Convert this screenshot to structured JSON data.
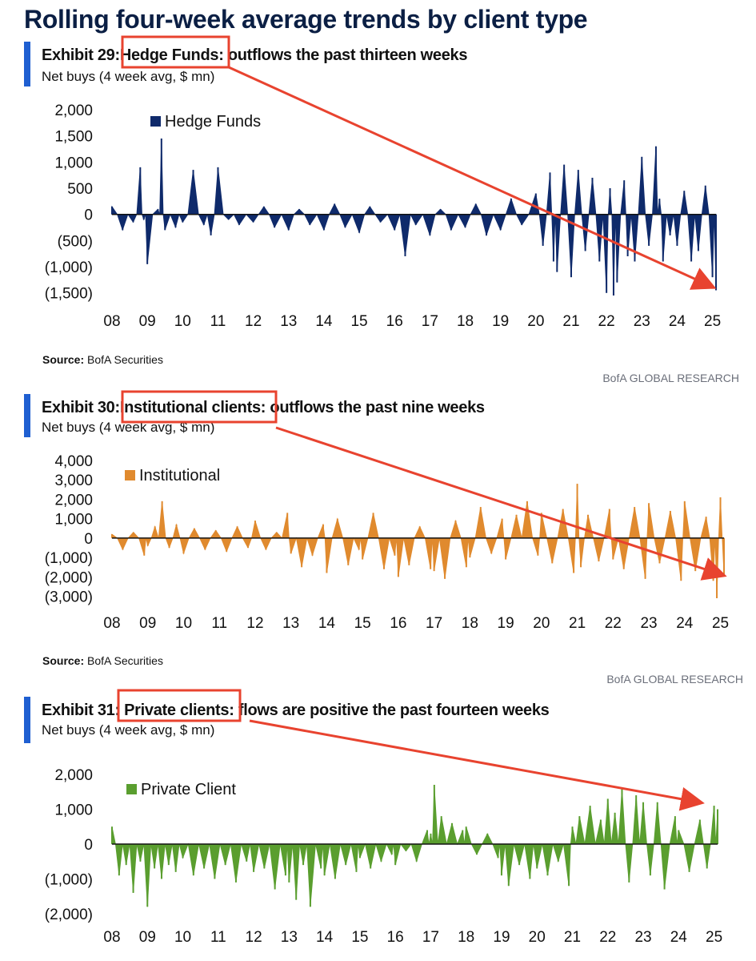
{
  "page": {
    "title": "Rolling four-week average trends by client type"
  },
  "exhibits": [
    {
      "label": "Exhibit 29:",
      "highlight": "Hedge Funds:",
      "rest": "outflows the past thirteen weeks",
      "subtitle": "Net buys (4 week avg, $ mn)",
      "source_label": "Source:",
      "source_text": " BofA Securities",
      "brand": "BofA GLOBAL RESEARCH"
    },
    {
      "label": "Exhibit 30:",
      "highlight": "Institutional clients:",
      "rest": "outflows the past nine weeks",
      "subtitle": "Net buys (4 week avg, $ mn)",
      "source_label": "Source:",
      "source_text": " BofA Securities",
      "brand": "BofA GLOBAL RESEARCH"
    },
    {
      "label": "Exhibit 31:",
      "highlight": "Private clients:",
      "rest": "flows are positive the past fourteen weeks",
      "subtitle": "Net buys (4 week avg, $ mn)",
      "source_label": "",
      "source_text": "",
      "brand": ""
    }
  ],
  "colors": {
    "accent_bar": "#1f5fd1",
    "highlight_box": "#e8432f",
    "arrow": "#e8432f"
  },
  "chart_data": [
    {
      "type": "area",
      "series": [
        {
          "name": "Hedge Funds",
          "color": "#0f2a6b",
          "x": [
            2008.0,
            2008.3,
            2008.6,
            2008.8,
            2008.9,
            2009.0,
            2009.3,
            2009.4,
            2009.5,
            2009.8,
            2010.0,
            2010.3,
            2010.6,
            2010.8,
            2011.0,
            2011.3,
            2011.6,
            2012.0,
            2012.3,
            2012.6,
            2013.0,
            2013.3,
            2013.6,
            2014.0,
            2014.3,
            2014.6,
            2015.0,
            2015.3,
            2015.6,
            2016.0,
            2016.3,
            2016.6,
            2017.0,
            2017.3,
            2017.6,
            2018.0,
            2018.3,
            2018.6,
            2019.0,
            2019.3,
            2019.6,
            2020.0,
            2020.2,
            2020.4,
            2020.5,
            2020.6,
            2020.8,
            2021.0,
            2021.2,
            2021.4,
            2021.6,
            2021.8,
            2022.0,
            2022.1,
            2022.2,
            2022.3,
            2022.5,
            2022.6,
            2022.8,
            2023.0,
            2023.2,
            2023.4,
            2023.5,
            2023.6,
            2023.8,
            2024.0,
            2024.2,
            2024.4,
            2024.6,
            2024.8,
            2025.0,
            2025.1
          ],
          "y": [
            150,
            -300,
            -150,
            900,
            -100,
            -950,
            100,
            1450,
            -300,
            -250,
            -150,
            850,
            -200,
            -400,
            900,
            -100,
            -200,
            -150,
            150,
            -250,
            -300,
            100,
            -200,
            -300,
            200,
            -250,
            -350,
            150,
            -150,
            -300,
            -800,
            -200,
            -400,
            100,
            -300,
            -250,
            200,
            -400,
            -300,
            300,
            -200,
            400,
            -600,
            800,
            -900,
            -1100,
            950,
            -1200,
            850,
            -700,
            700,
            -900,
            -1500,
            500,
            -1550,
            -1300,
            650,
            -800,
            -900,
            1100,
            -600,
            1300,
            300,
            -900,
            -400,
            -600,
            450,
            -900,
            -700,
            550,
            -1200,
            -1450
          ]
        }
      ],
      "categories": [
        "08",
        "09",
        "10",
        "11",
        "12",
        "13",
        "14",
        "15",
        "16",
        "17",
        "18",
        "19",
        "20",
        "21",
        "22",
        "23",
        "24",
        "25"
      ],
      "yticks": [
        2000,
        1500,
        1000,
        500,
        0,
        -500,
        -1000,
        -1500
      ],
      "yticklabels": [
        "2,000",
        "1,500",
        "1,000",
        "500",
        "0",
        "(500)",
        "(1,000)",
        "(1,500)"
      ],
      "ylim": [
        -1550,
        2000
      ],
      "xlim": [
        2008,
        2025.1
      ],
      "legend": "top-left"
    },
    {
      "type": "area",
      "series": [
        {
          "name": "Institutional",
          "color": "#e08a2e",
          "x": [
            2008.0,
            2008.3,
            2008.6,
            2008.9,
            2009.0,
            2009.2,
            2009.4,
            2009.6,
            2009.8,
            2010.0,
            2010.3,
            2010.6,
            2010.9,
            2011.2,
            2011.5,
            2011.8,
            2012.0,
            2012.3,
            2012.6,
            2012.9,
            2013.0,
            2013.3,
            2013.6,
            2013.9,
            2014.0,
            2014.3,
            2014.6,
            2014.9,
            2015.0,
            2015.3,
            2015.6,
            2015.9,
            2016.0,
            2016.3,
            2016.6,
            2016.9,
            2017.0,
            2017.3,
            2017.6,
            2017.9,
            2018.0,
            2018.3,
            2018.6,
            2018.9,
            2019.0,
            2019.3,
            2019.6,
            2019.9,
            2020.0,
            2020.3,
            2020.6,
            2020.9,
            2021.0,
            2021.1,
            2021.3,
            2021.6,
            2021.9,
            2022.0,
            2022.3,
            2022.6,
            2022.9,
            2023.0,
            2023.3,
            2023.6,
            2023.9,
            2024.0,
            2024.3,
            2024.6,
            2024.8,
            2024.9,
            2025.0,
            2025.1
          ],
          "y": [
            200,
            -600,
            300,
            -900,
            -400,
            600,
            1900,
            -500,
            700,
            -800,
            500,
            -600,
            400,
            -700,
            600,
            -500,
            900,
            -600,
            300,
            1300,
            -800,
            -1500,
            -900,
            700,
            -1800,
            1000,
            -1400,
            -600,
            -1100,
            1300,
            -1600,
            -900,
            -2000,
            -1400,
            600,
            -1600,
            -1700,
            -2100,
            900,
            -1500,
            -1000,
            1600,
            -800,
            1000,
            -1100,
            1200,
            1900,
            -900,
            1300,
            -1300,
            1500,
            -1800,
            2800,
            -1500,
            1200,
            -1200,
            1500,
            -1100,
            -1600,
            1600,
            -2100,
            1800,
            -1300,
            1400,
            -2200,
            1900,
            -1700,
            1100,
            -2200,
            -3100,
            2100,
            -1900
          ]
        }
      ],
      "categories": [
        "08",
        "09",
        "10",
        "11",
        "12",
        "13",
        "14",
        "15",
        "16",
        "17",
        "18",
        "19",
        "20",
        "21",
        "22",
        "23",
        "24",
        "25"
      ],
      "yticks": [
        4000,
        3000,
        2000,
        1000,
        0,
        -1000,
        -2000,
        -3000
      ],
      "yticklabels": [
        "4,000",
        "3,000",
        "2,000",
        "1,000",
        "0",
        "(1,000)",
        "(2,000)",
        "(3,000)"
      ],
      "ylim": [
        -3100,
        4000
      ],
      "xlim": [
        2008,
        2025.1
      ],
      "legend": "top-left"
    },
    {
      "type": "area",
      "series": [
        {
          "name": "Private Client",
          "color": "#5a9e2f",
          "x": [
            2008.0,
            2008.2,
            2008.4,
            2008.6,
            2008.8,
            2009.0,
            2009.2,
            2009.4,
            2009.6,
            2009.8,
            2010.0,
            2010.3,
            2010.6,
            2010.9,
            2011.2,
            2011.5,
            2011.8,
            2012.0,
            2012.3,
            2012.6,
            2012.9,
            2013.0,
            2013.2,
            2013.4,
            2013.6,
            2013.9,
            2014.0,
            2014.3,
            2014.6,
            2014.9,
            2015.0,
            2015.3,
            2015.6,
            2015.9,
            2016.0,
            2016.3,
            2016.6,
            2016.9,
            2017.0,
            2017.1,
            2017.3,
            2017.6,
            2017.9,
            2018.0,
            2018.3,
            2018.6,
            2018.9,
            2019.0,
            2019.2,
            2019.5,
            2019.8,
            2020.0,
            2020.3,
            2020.6,
            2020.9,
            2021.0,
            2021.2,
            2021.5,
            2021.8,
            2022.0,
            2022.2,
            2022.4,
            2022.6,
            2022.8,
            2023.0,
            2023.2,
            2023.4,
            2023.6,
            2023.9,
            2024.0,
            2024.3,
            2024.6,
            2024.8,
            2025.0,
            2025.1
          ],
          "y": [
            500,
            -900,
            -600,
            -1400,
            -500,
            -1800,
            -700,
            -1000,
            -600,
            -800,
            -400,
            -900,
            -700,
            -1000,
            -600,
            -1100,
            -500,
            -800,
            -700,
            -1300,
            -900,
            -1100,
            -1600,
            -600,
            -1800,
            -700,
            -900,
            -1000,
            -600,
            -800,
            -400,
            -700,
            -500,
            -300,
            -600,
            -200,
            -500,
            400,
            300,
            1700,
            800,
            600,
            400,
            500,
            -300,
            300,
            -400,
            -900,
            -1200,
            -600,
            -1000,
            -700,
            -900,
            -500,
            -1200,
            500,
            800,
            1100,
            700,
            1300,
            900,
            1600,
            -1100,
            1400,
            1200,
            -900,
            1200,
            -1300,
            800,
            400,
            -800,
            700,
            -700,
            1100,
            1000
          ]
        }
      ],
      "categories": [
        "08",
        "09",
        "10",
        "11",
        "12",
        "13",
        "14",
        "15",
        "16",
        "17",
        "18",
        "19",
        "20",
        "21",
        "22",
        "23",
        "24",
        "25"
      ],
      "yticks": [
        2000,
        1000,
        0,
        -1000,
        -2000
      ],
      "yticklabels": [
        "2,000",
        "1,000",
        "0",
        "(1,000)",
        "(2,000)"
      ],
      "ylim": [
        -2000,
        2000
      ],
      "xlim": [
        2008,
        2025.1
      ],
      "legend": "top-left"
    }
  ]
}
